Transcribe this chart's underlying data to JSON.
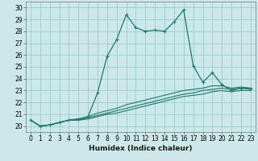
{
  "title": "",
  "xlabel": "Humidex (Indice chaleur)",
  "ylabel": "",
  "bg_color": "#cce8e8",
  "grid_color": "#99cccc",
  "line_color": "#1a7a6e",
  "xlim": [
    -0.5,
    23.5
  ],
  "ylim": [
    19.5,
    30.5
  ],
  "yticks": [
    20,
    21,
    22,
    23,
    24,
    25,
    26,
    27,
    28,
    29,
    30
  ],
  "xticks": [
    0,
    1,
    2,
    3,
    4,
    5,
    6,
    7,
    8,
    9,
    10,
    11,
    12,
    13,
    14,
    15,
    16,
    17,
    18,
    19,
    20,
    21,
    22,
    23
  ],
  "series1_x": [
    0,
    1,
    2,
    3,
    4,
    5,
    6,
    7,
    8,
    9,
    10,
    11,
    12,
    13,
    14,
    15,
    16,
    17,
    18,
    19,
    20,
    21,
    22,
    23
  ],
  "series1_y": [
    20.5,
    20.0,
    20.1,
    20.3,
    20.5,
    20.6,
    20.8,
    22.8,
    25.9,
    27.3,
    29.4,
    28.3,
    28.0,
    28.1,
    28.0,
    28.8,
    29.8,
    25.1,
    23.7,
    24.5,
    23.5,
    23.0,
    23.2,
    23.2
  ],
  "series2_x": [
    0,
    1,
    2,
    3,
    4,
    5,
    6,
    7,
    8,
    9,
    10,
    11,
    12,
    13,
    14,
    15,
    16,
    17,
    18,
    19,
    20,
    21,
    22,
    23
  ],
  "series2_y": [
    20.5,
    20.0,
    20.1,
    20.3,
    20.5,
    20.6,
    20.8,
    21.1,
    21.3,
    21.5,
    21.8,
    22.0,
    22.2,
    22.4,
    22.6,
    22.8,
    23.0,
    23.1,
    23.2,
    23.4,
    23.4,
    23.2,
    23.3,
    23.2
  ],
  "series3_x": [
    0,
    1,
    2,
    3,
    4,
    5,
    6,
    7,
    8,
    9,
    10,
    11,
    12,
    13,
    14,
    15,
    16,
    17,
    18,
    19,
    20,
    21,
    22,
    23
  ],
  "series3_y": [
    20.5,
    20.0,
    20.1,
    20.3,
    20.5,
    20.5,
    20.7,
    20.9,
    21.1,
    21.3,
    21.5,
    21.7,
    21.9,
    22.1,
    22.3,
    22.5,
    22.7,
    22.8,
    23.0,
    23.1,
    23.2,
    23.1,
    23.2,
    23.1
  ],
  "series4_x": [
    0,
    1,
    2,
    3,
    4,
    5,
    6,
    7,
    8,
    9,
    10,
    11,
    12,
    13,
    14,
    15,
    16,
    17,
    18,
    19,
    20,
    21,
    22,
    23
  ],
  "series4_y": [
    20.5,
    20.0,
    20.1,
    20.3,
    20.5,
    20.5,
    20.6,
    20.8,
    21.0,
    21.1,
    21.3,
    21.5,
    21.7,
    21.9,
    22.1,
    22.3,
    22.5,
    22.6,
    22.7,
    22.9,
    23.0,
    22.9,
    23.0,
    23.0
  ],
  "tick_fontsize": 5.5,
  "xlabel_fontsize": 6.5
}
